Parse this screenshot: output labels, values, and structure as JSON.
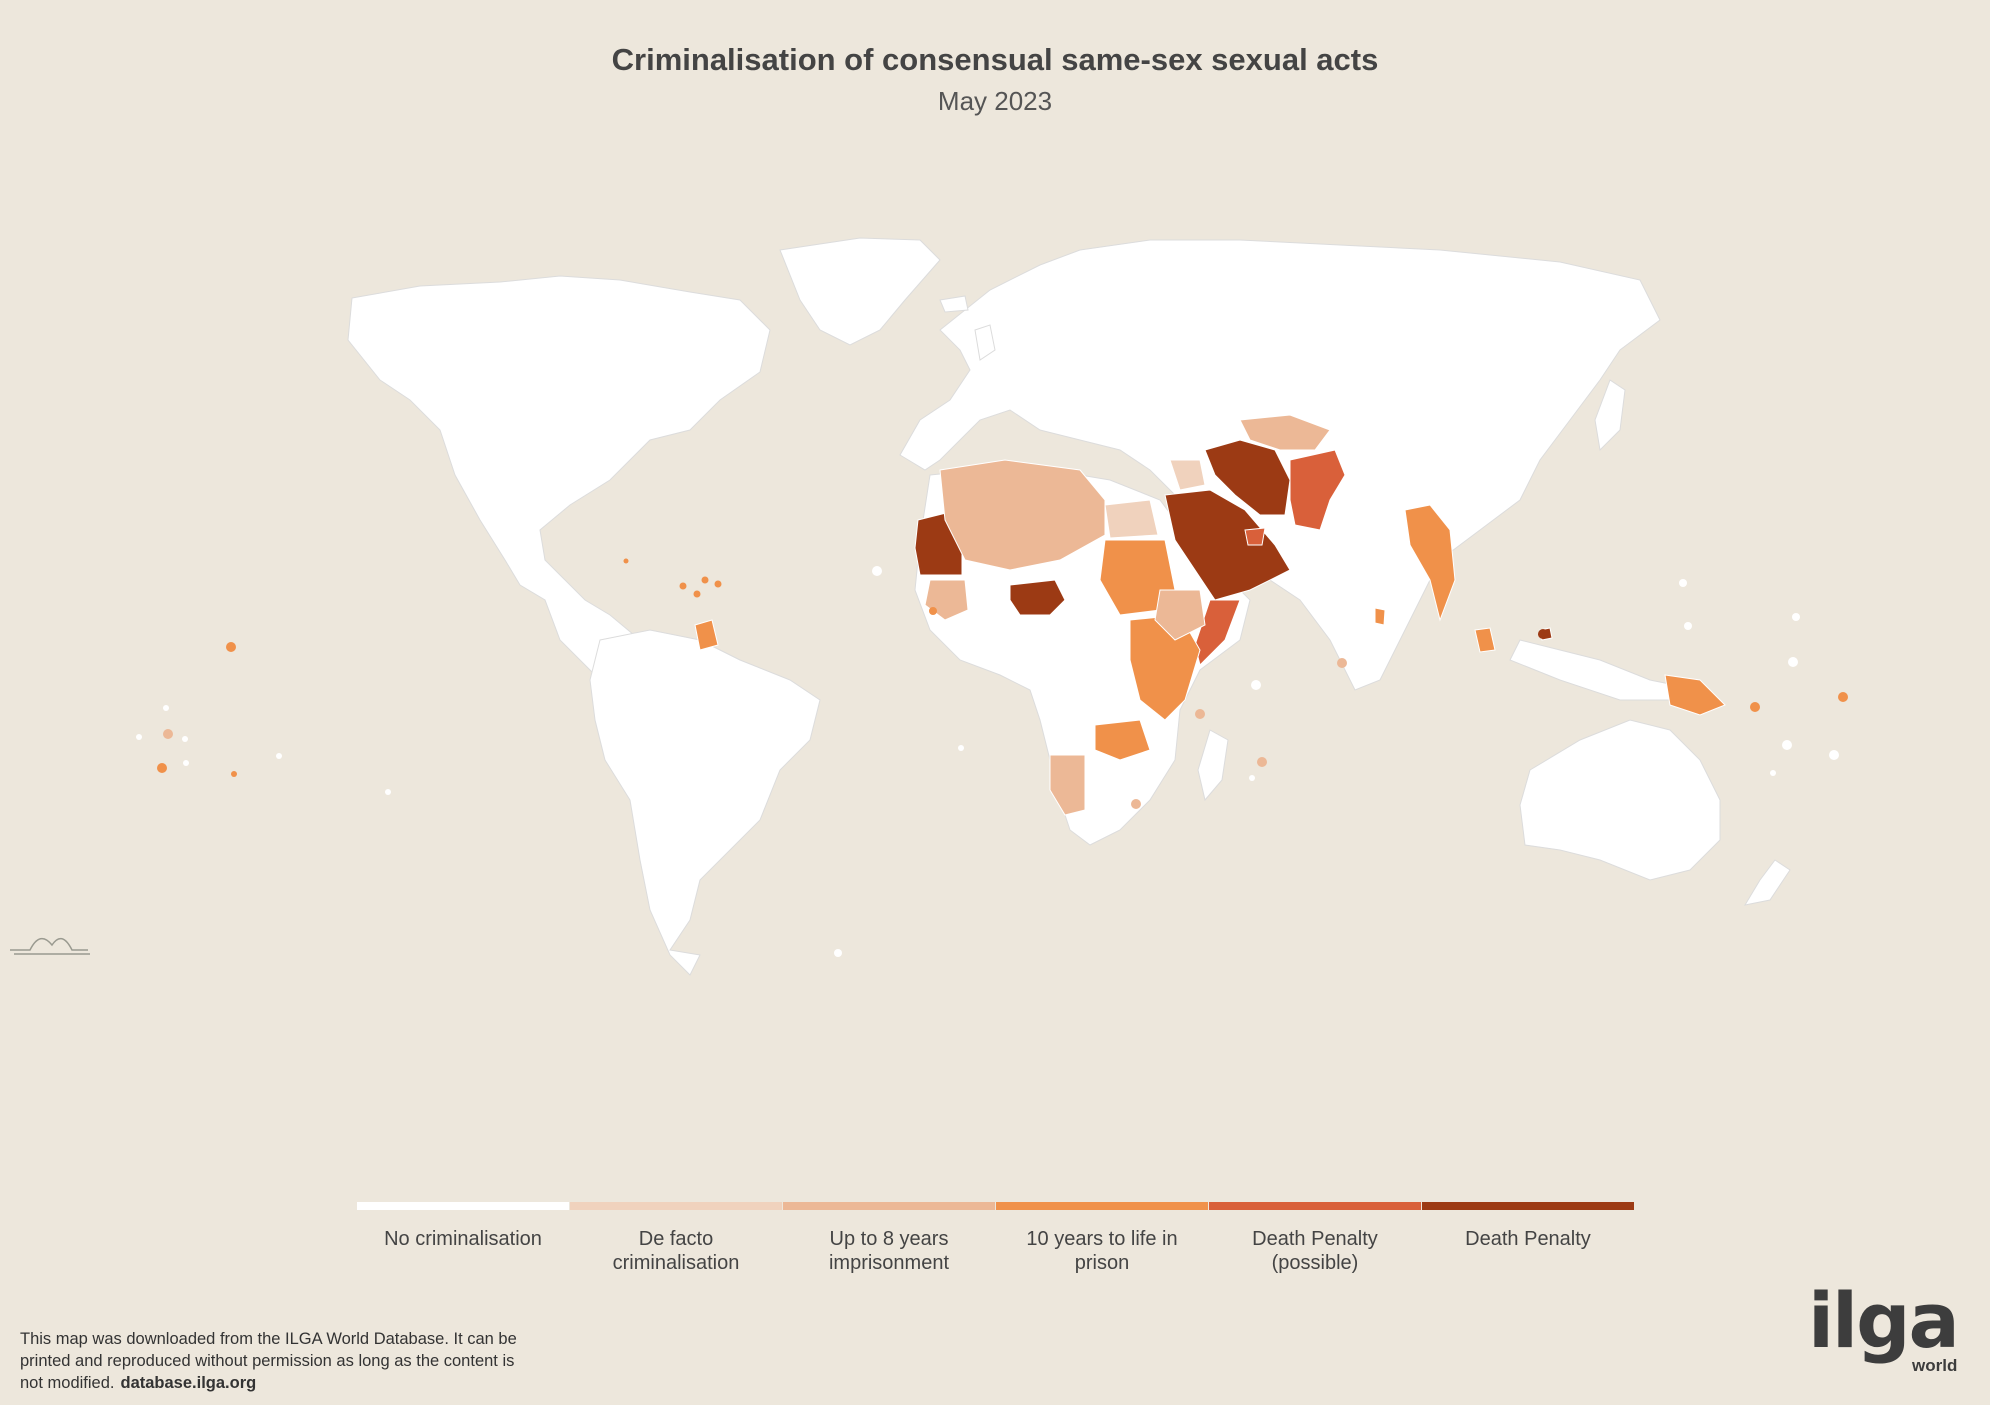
{
  "title": "Criminalisation of consensual same-sex sexual acts",
  "subtitle": "May 2023",
  "colors": {
    "background": "#ede7dc",
    "land": "#ffffff",
    "border": "#d9d9d9",
    "no_criminalisation": "#ffffff",
    "de_facto": "#f0d2bd",
    "up_to_8_years": "#ecb896",
    "ten_to_life": "#f0914a",
    "death_possible": "#d9603a",
    "death_penalty": "#9c3a14"
  },
  "legend": [
    {
      "label": "No criminalisation",
      "color": "#ffffff"
    },
    {
      "label": "De facto\ncriminalisation",
      "color": "#f0d2bd"
    },
    {
      "label": "Up to 8 years\nimprisonment",
      "color": "#ecb896"
    },
    {
      "label": "10 years to life in\nprison",
      "color": "#f0914a"
    },
    {
      "label": "Death Penalty\n(possible)",
      "color": "#d9603a"
    },
    {
      "label": "Death Penalty",
      "color": "#9c3a14"
    }
  ],
  "note": {
    "text": "This map was downloaded from the ILGA World Database. It can be printed and reproduced without permission as long as the content is not modified.",
    "url": "database.ilga.org"
  },
  "logo": {
    "word": "ilga",
    "sub": "world"
  }
}
